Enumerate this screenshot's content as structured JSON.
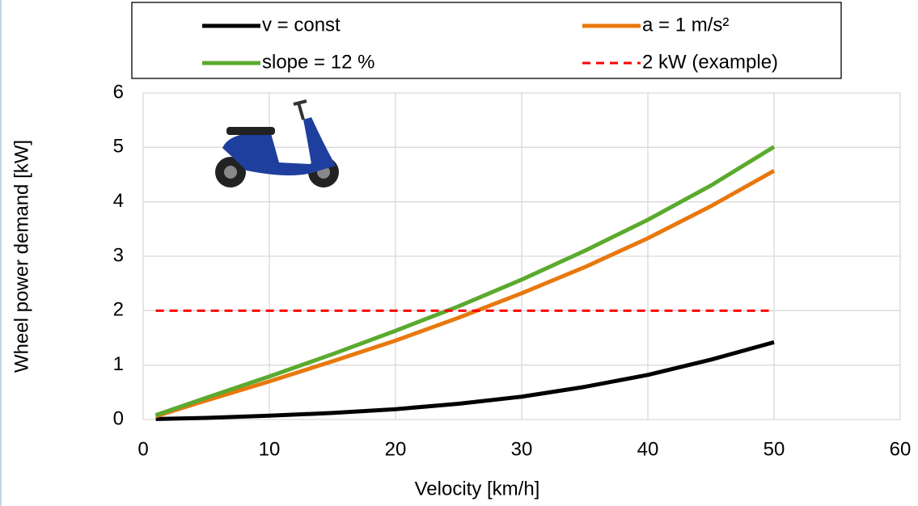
{
  "chart_data": {
    "type": "line",
    "x_label": "Velocity [km/h]",
    "y_label": "Wheel power demand [kW]",
    "x": [
      1,
      5,
      10,
      15,
      20,
      25,
      30,
      35,
      40,
      45,
      50
    ],
    "series": [
      {
        "name": "v = const",
        "color": "#000000",
        "dash": false,
        "values": [
          0.01,
          0.03,
          0.07,
          0.12,
          0.19,
          0.29,
          0.42,
          0.6,
          0.82,
          1.1,
          1.42
        ]
      },
      {
        "name": "a = 1 m/s²",
        "color": "#e8780e",
        "dash": false,
        "values": [
          0.06,
          0.35,
          0.7,
          1.07,
          1.45,
          1.87,
          2.32,
          2.8,
          3.33,
          3.92,
          4.57
        ]
      },
      {
        "name": "slope = 12 %",
        "color": "#5aaa2e",
        "dash": false,
        "values": [
          0.08,
          0.4,
          0.79,
          1.2,
          1.63,
          2.08,
          2.57,
          3.1,
          3.67,
          4.3,
          5.01
        ]
      },
      {
        "name": "2 kW (example)",
        "color": "#ff0000",
        "dash": true,
        "values": [
          2,
          2,
          2,
          2,
          2,
          2,
          2,
          2,
          2,
          2,
          2
        ]
      }
    ],
    "xlim": [
      0,
      60
    ],
    "xticks": [
      0,
      10,
      20,
      30,
      40,
      50,
      60
    ],
    "ylim": [
      0,
      6
    ],
    "yticks": [
      0,
      1,
      2,
      3,
      4,
      5,
      6
    ],
    "grid": true,
    "legend": "top"
  }
}
